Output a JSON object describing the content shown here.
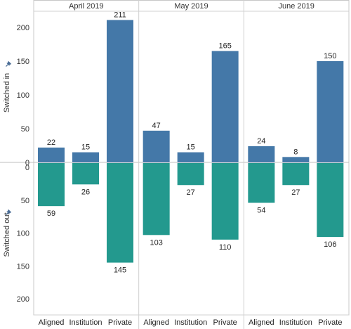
{
  "chart_data": {
    "type": "bar",
    "months": [
      "April 2019",
      "May 2019",
      "June 2019"
    ],
    "categories": [
      "Aligned",
      "Institution",
      "Private"
    ],
    "series": [
      {
        "name": "Switched in",
        "color": "#4478a8",
        "values": [
          [
            22,
            15,
            211
          ],
          [
            47,
            15,
            165
          ],
          [
            24,
            8,
            150
          ]
        ]
      },
      {
        "name": "Switched out",
        "color": "#23998e",
        "values": [
          [
            59,
            26,
            145
          ],
          [
            103,
            27,
            110
          ],
          [
            54,
            27,
            106
          ]
        ]
      }
    ],
    "ylabel_top": "Switched in",
    "ylabel_bottom": "Switched out",
    "ylim_top": [
      0,
      220
    ],
    "ylim_bottom": [
      0,
      220
    ],
    "yticks_top": [
      0,
      50,
      100,
      150,
      200
    ],
    "yticks_bottom": [
      0,
      50,
      100,
      150,
      200
    ],
    "axis_icon": "pin-icon",
    "grid": false
  }
}
